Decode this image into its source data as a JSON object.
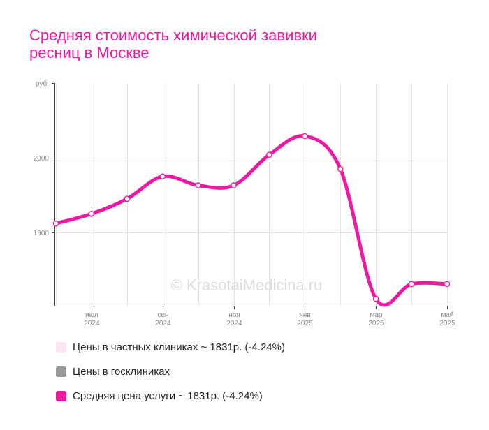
{
  "title_lines": [
    "Средняя стоимость химической завивки",
    "ресниц в Москве"
  ],
  "watermark": "© KrasotaiMedicina.ru",
  "colors": {
    "accent": "#f018a2",
    "private_swatch": "#fde6f2",
    "public_swatch": "#999999",
    "grid": "#e2e2e2",
    "axis": "#444444"
  },
  "legend": [
    {
      "label": "Цены в частных клиниках ~ 1831р. (-4.24%)",
      "color": "#fde6f2"
    },
    {
      "label": "Цены в госклиниках",
      "color": "#999999"
    },
    {
      "label": "Средняя цена услуги ~ 1831р. (-4.24%)",
      "color": "#f018a2"
    }
  ],
  "chart_data": {
    "type": "line",
    "title": "Средняя стоимость химической завивки ресниц в Москве",
    "ylabel": "руб.",
    "ylim": [
      1800,
      2100
    ],
    "yticks": [
      1900,
      2000
    ],
    "x_tick_labels": [
      {
        "month": "июл",
        "year": "2024"
      },
      {
        "month": "сен",
        "year": "2024"
      },
      {
        "month": "ноя",
        "year": "2024"
      },
      {
        "month": "янв",
        "year": "2025"
      },
      {
        "month": "мар",
        "year": "2025"
      },
      {
        "month": "май",
        "year": "2025"
      }
    ],
    "x": [
      "2024-06",
      "2024-07",
      "2024-08",
      "2024-09",
      "2024-10",
      "2024-11",
      "2024-12",
      "2025-01",
      "2025-02",
      "2025-03",
      "2025-04",
      "2025-05"
    ],
    "series": [
      {
        "name": "Средняя цена услуги ~ 1831р. (-4.24%)",
        "color": "#f018a2",
        "values": [
          1912,
          1925,
          1945,
          1975,
          1963,
          1963,
          2004,
          2029,
          1985,
          1811,
          1831,
          1831
        ]
      }
    ],
    "grid": true,
    "legend_position": "bottom"
  }
}
